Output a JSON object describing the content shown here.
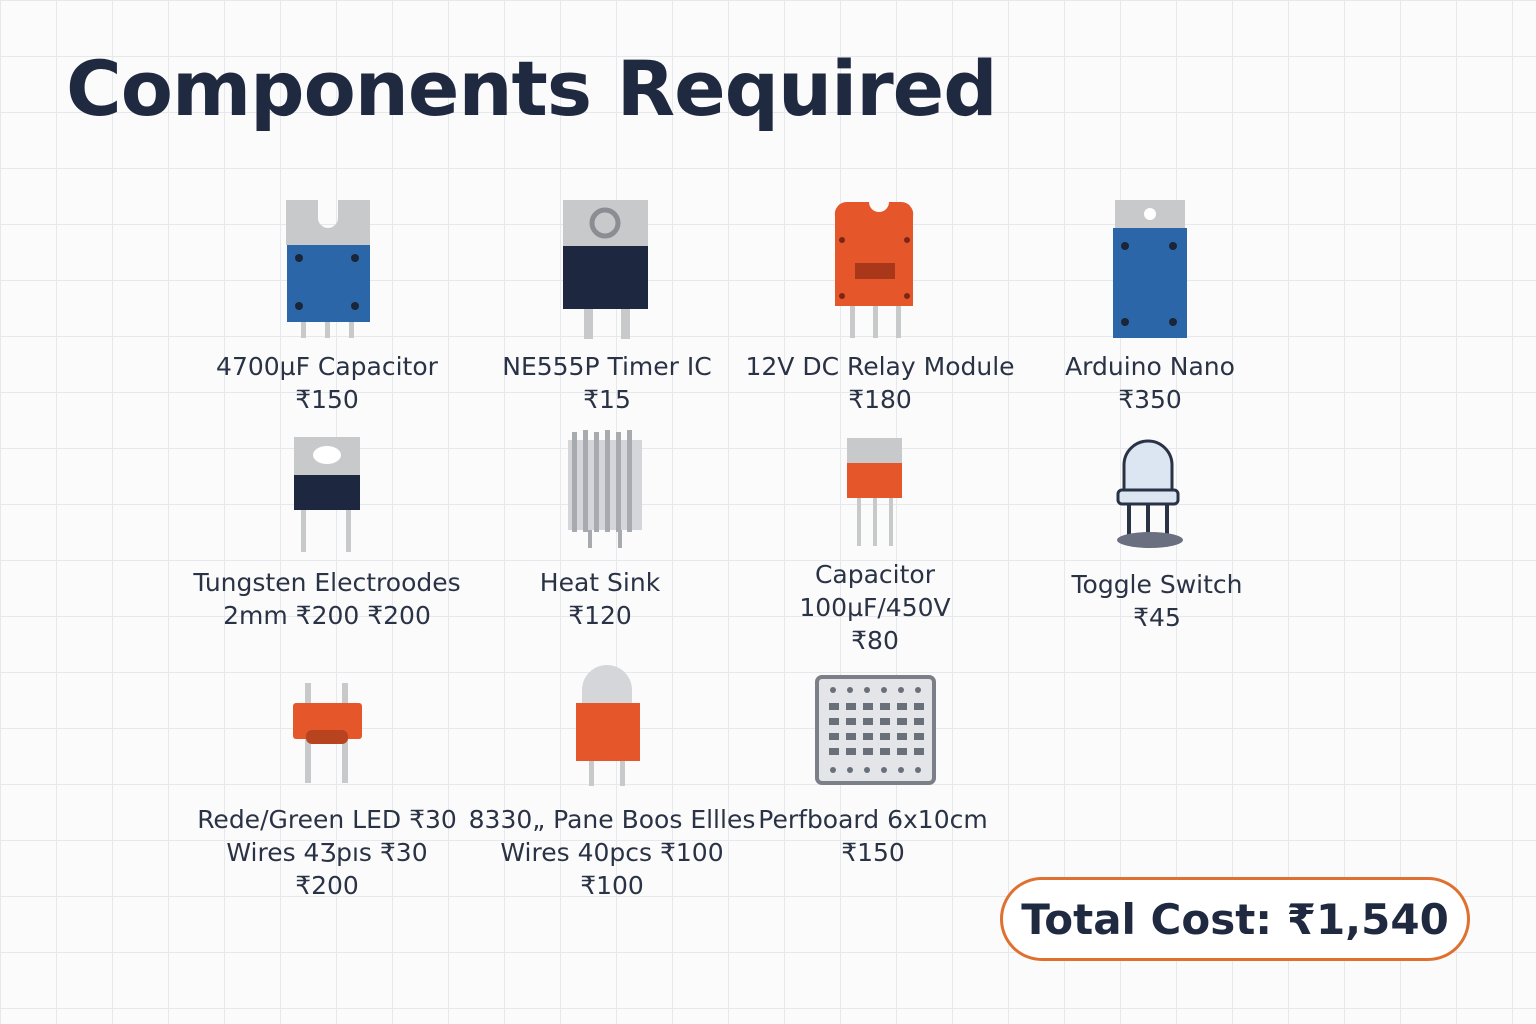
{
  "header": {
    "title": "Components Required"
  },
  "items": [
    {
      "lines": [
        "4700µF Capacitor",
        "₹150"
      ]
    },
    {
      "lines": [
        "NE555P Timer IC",
        "₹15"
      ]
    },
    {
      "lines": [
        "12V DC Relay Module",
        "₹180"
      ]
    },
    {
      "lines": [
        "Arduino Nano",
        "₹350"
      ]
    },
    {
      "lines": [
        "Tungsten Electroodes",
        "2mm  ₹200  ₹200"
      ]
    },
    {
      "lines": [
        "Heat Sink",
        "₹120"
      ]
    },
    {
      "lines": [
        "Capacitor",
        "100µF/450V",
        "₹80"
      ]
    },
    {
      "lines": [
        "Toggle Switch",
        "₹45"
      ]
    },
    {
      "lines": [
        "Rede/Green LED ₹30",
        "Wires 4Ʒpıs ₹30",
        "₹200"
      ]
    },
    {
      "lines": [
        "8330„ Pane Boos Ellles",
        "Wires 40pcs ₹100",
        "₹100"
      ]
    },
    {
      "lines": [
        "Perfboard 6x10cm",
        "₹150"
      ]
    }
  ],
  "total": {
    "label": "Total Cost: ₹1,540"
  }
}
